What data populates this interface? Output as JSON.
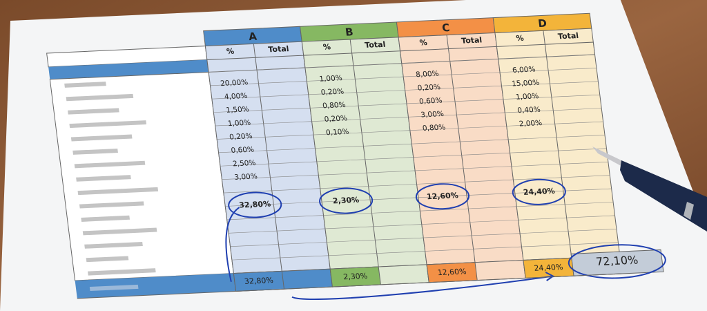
{
  "columns": [
    {
      "name": "A",
      "subheaders": [
        "%",
        "Total"
      ],
      "values": [
        "20,00%",
        "4,00%",
        "1,50%",
        "1,00%",
        "0,20%",
        "0,60%",
        "2,50%",
        "3,00%"
      ],
      "circled": "32,80%",
      "total": "32,80%"
    },
    {
      "name": "B",
      "subheaders": [
        "%",
        "Total"
      ],
      "values": [
        "1,00%",
        "0,20%",
        "0,80%",
        "0,20%",
        "0,10%"
      ],
      "circled": "2,30%",
      "total": "2,30%"
    },
    {
      "name": "C",
      "subheaders": [
        "%",
        "Total"
      ],
      "values": [
        "8,00%",
        "0,20%",
        "0,60%",
        "3,00%",
        "0,80%"
      ],
      "circled": "12,60%",
      "total": "12,60%"
    },
    {
      "name": "D",
      "subheaders": [
        "%",
        "Total"
      ],
      "values": [
        "6,00%",
        "15,00%",
        "1,00%",
        "0,40%",
        "2,00%"
      ],
      "circled": "24,40%",
      "total": "24,40%"
    }
  ],
  "grand_total": "72,10%"
}
